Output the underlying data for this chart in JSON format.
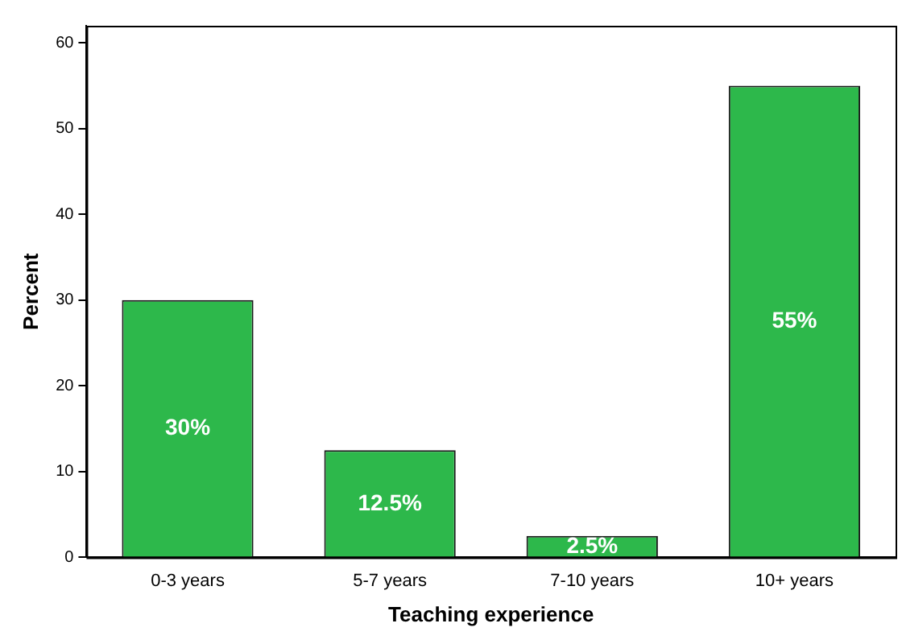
{
  "chart_data": {
    "type": "bar",
    "xlabel": "Teaching experience",
    "ylabel": "Percent",
    "categories": [
      "0-3 years",
      "5-7 years",
      "7-10 years",
      "10+ years"
    ],
    "values": [
      30,
      12.5,
      2.5,
      55
    ],
    "color": "#2db84b",
    "value_labels": [
      "30%",
      "12.5%",
      "2.5%",
      "55%"
    ],
    "ylim": [
      0,
      62
    ],
    "yticks": [
      0,
      10,
      20,
      30,
      40,
      50,
      60
    ],
    "grid": false,
    "legend": false
  }
}
